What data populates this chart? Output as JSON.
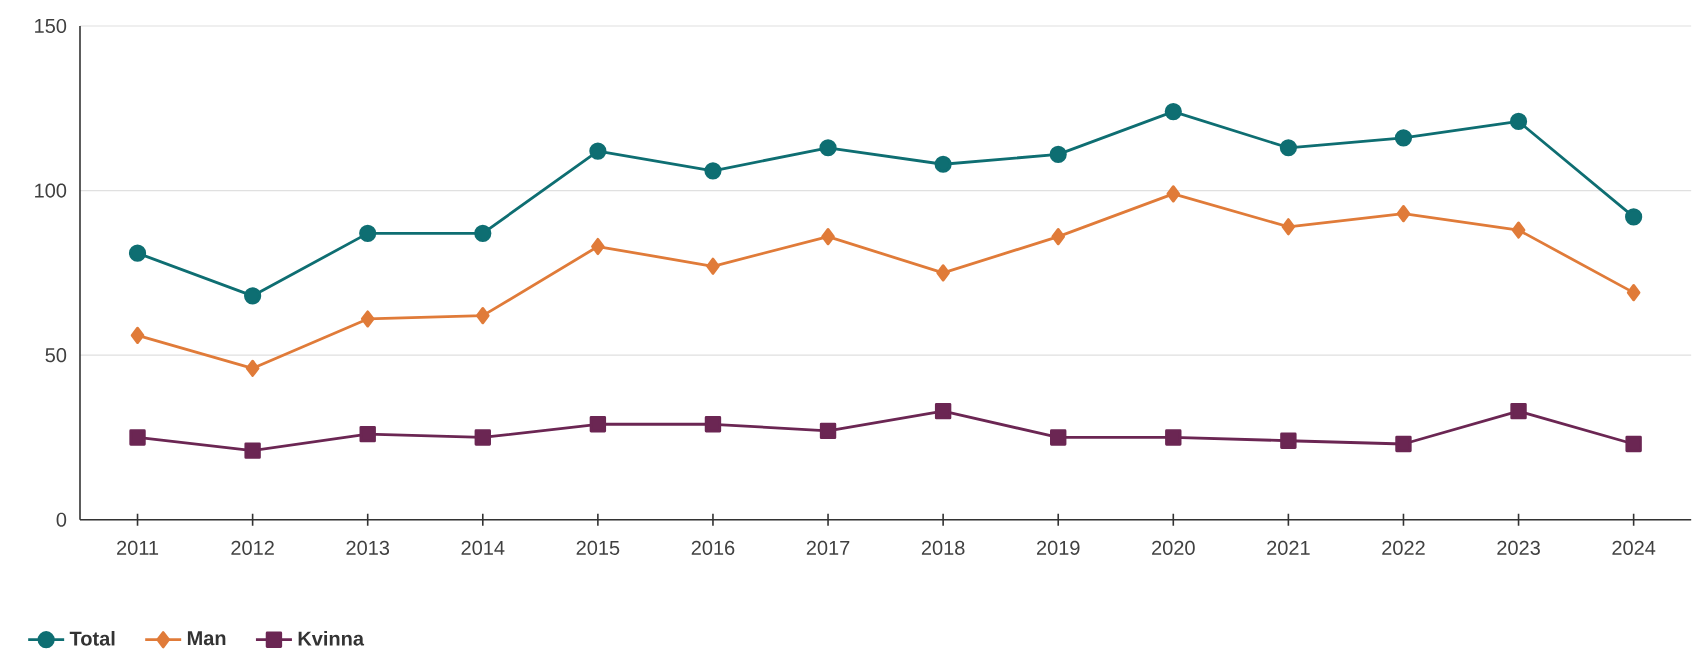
{
  "chart_data": {
    "type": "line",
    "categories": [
      "2011",
      "2012",
      "2013",
      "2014",
      "2015",
      "2016",
      "2017",
      "2018",
      "2019",
      "2020",
      "2021",
      "2022",
      "2023",
      "2024"
    ],
    "series": [
      {
        "name": "Total",
        "color": "#0e6e72",
        "marker": "circle",
        "values": [
          81,
          68,
          87,
          87,
          112,
          106,
          113,
          108,
          111,
          124,
          113,
          116,
          121,
          92
        ]
      },
      {
        "name": "Man",
        "color": "#e07b39",
        "marker": "diamond",
        "values": [
          56,
          46,
          61,
          62,
          83,
          77,
          86,
          75,
          86,
          99,
          89,
          93,
          88,
          69
        ]
      },
      {
        "name": "Kvinna",
        "color": "#6b2653",
        "marker": "square",
        "values": [
          25,
          21,
          26,
          25,
          29,
          29,
          27,
          33,
          25,
          25,
          24,
          23,
          33,
          23
        ]
      }
    ],
    "ylim": [
      0,
      150
    ],
    "yticks": [
      0,
      50,
      100,
      150
    ],
    "grid": "y",
    "legend": "bottom left"
  }
}
